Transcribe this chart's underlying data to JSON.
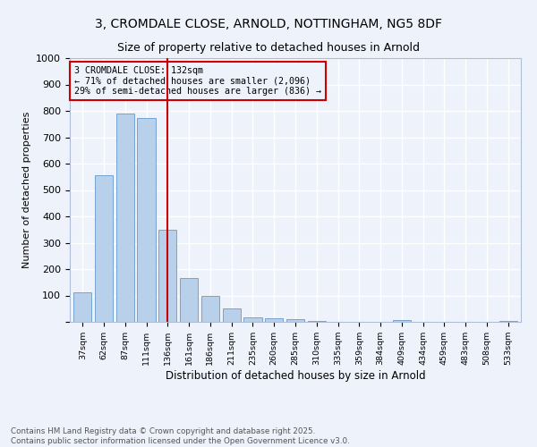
{
  "title_line1": "3, CROMDALE CLOSE, ARNOLD, NOTTINGHAM, NG5 8DF",
  "title_line2": "Size of property relative to detached houses in Arnold",
  "xlabel": "Distribution of detached houses by size in Arnold",
  "ylabel": "Number of detached properties",
  "bar_color": "#b8d0ea",
  "bar_edge_color": "#6699cc",
  "background_color": "#eef2fb",
  "grid_color": "#ffffff",
  "categories": [
    "37sqm",
    "62sqm",
    "87sqm",
    "111sqm",
    "136sqm",
    "161sqm",
    "186sqm",
    "211sqm",
    "235sqm",
    "260sqm",
    "285sqm",
    "310sqm",
    "335sqm",
    "359sqm",
    "384sqm",
    "409sqm",
    "434sqm",
    "459sqm",
    "483sqm",
    "508sqm",
    "533sqm"
  ],
  "values": [
    113,
    557,
    790,
    772,
    348,
    165,
    97,
    52,
    18,
    13,
    9,
    2,
    0,
    0,
    0,
    6,
    0,
    0,
    0,
    0,
    5
  ],
  "ylim": [
    0,
    1000
  ],
  "yticks": [
    0,
    100,
    200,
    300,
    400,
    500,
    600,
    700,
    800,
    900,
    1000
  ],
  "vline_index": 4,
  "vline_color": "#cc0000",
  "annotation_text": "3 CROMDALE CLOSE: 132sqm\n← 71% of detached houses are smaller (2,096)\n29% of semi-detached houses are larger (836) →",
  "annotation_box_color": "#cc0000",
  "footer_text": "Contains HM Land Registry data © Crown copyright and database right 2025.\nContains public sector information licensed under the Open Government Licence v3.0.",
  "fig_bg_color": "#eef2fb"
}
